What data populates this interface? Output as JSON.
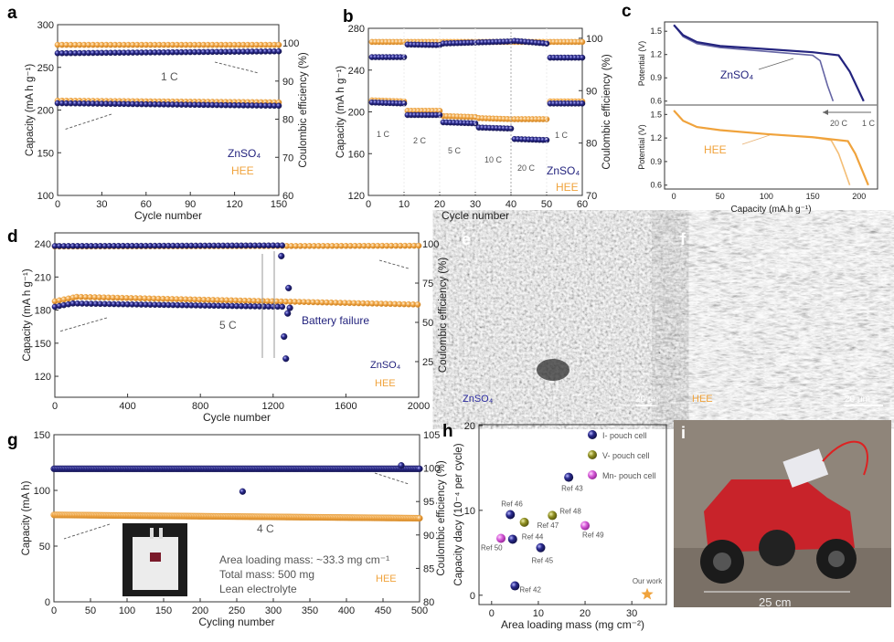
{
  "colors": {
    "zn": "#23237e",
    "hee": "#f0a33c",
    "v": "#8a8a1e",
    "mn": "#d45ad6",
    "axis": "#333333",
    "note": "#555555"
  },
  "chart_data": [
    {
      "id": "a",
      "type": "scatter",
      "letter": "a",
      "xlabel": "Cycle number",
      "ylabel": "Capacity (mA h g⁻¹)",
      "y2label": "Coulombic efficiency (%)",
      "xlim": [
        0,
        150
      ],
      "ylim": [
        100,
        300
      ],
      "y2lim": [
        60,
        104.8
      ],
      "xticks": [
        0,
        30,
        60,
        90,
        120,
        150
      ],
      "yticks": [
        100,
        150,
        200,
        250,
        300
      ],
      "y2ticks": [
        60,
        70,
        80,
        90,
        100
      ],
      "series": [
        {
          "name": "HEE CE",
          "axis": "right",
          "color": "hee",
          "segments": [
            [
              0,
              150,
              99.5,
              99.5
            ]
          ]
        },
        {
          "name": "ZnSO₄ CE",
          "axis": "right",
          "color": "zn",
          "segments": [
            [
              0,
              150,
              97.3,
              97.8
            ]
          ]
        },
        {
          "name": "HEE capacity",
          "axis": "left",
          "color": "hee",
          "segments": [
            [
              0,
              150,
              211,
              209
            ]
          ]
        },
        {
          "name": "ZnSO₄ capacity",
          "axis": "left",
          "color": "zn",
          "segments": [
            [
              0,
              150,
              208,
              205
            ]
          ]
        }
      ],
      "annotations": [
        "1 C"
      ],
      "legend": [
        "ZnSO₄",
        "HEE"
      ]
    },
    {
      "id": "b",
      "type": "scatter",
      "letter": "b",
      "xlabel": "Cycle number",
      "ylabel": "Capacity (mA h g⁻¹)",
      "y2label": "Coulombic efficiency (%)",
      "xlim": [
        0,
        60
      ],
      "ylim": [
        120,
        280
      ],
      "y2lim": [
        70,
        101.9
      ],
      "xticks": [
        0,
        10,
        20,
        30,
        40,
        50,
        60
      ],
      "yticks": [
        120,
        160,
        200,
        240,
        280
      ],
      "y2ticks": [
        70,
        80,
        90,
        100
      ],
      "series": [
        {
          "name": "HEE CE",
          "axis": "right",
          "color": "hee",
          "segments": [
            [
              1,
              60,
              99.3,
              99.3
            ]
          ]
        },
        {
          "name": "ZnSO₄ CE",
          "axis": "right",
          "color": "zn",
          "segments": [
            [
              1,
              10,
              96.4,
              96.4
            ],
            [
              11,
              20,
              98.8,
              98.7
            ],
            [
              21,
              40,
              99.0,
              99.4
            ],
            [
              41,
              50,
              99.5,
              99.0
            ],
            [
              51,
              60,
              96.3,
              96.3
            ]
          ]
        },
        {
          "name": "HEE capacity",
          "axis": "left",
          "color": "hee",
          "segments": [
            [
              1,
              10,
              211,
              210
            ],
            [
              11,
              20,
              201,
              201
            ],
            [
              21,
              30,
              196,
              195
            ],
            [
              31,
              40,
              194,
              193
            ],
            [
              41,
              50,
              193,
              193
            ],
            [
              51,
              60,
              210,
              210
            ]
          ]
        },
        {
          "name": "ZnSO₄ capacity",
          "axis": "left",
          "color": "zn",
          "segments": [
            [
              1,
              10,
              209,
              208
            ],
            [
              11,
              20,
              197,
              197
            ],
            [
              21,
              30,
              190,
              189
            ],
            [
              31,
              40,
              185,
              184
            ],
            [
              41,
              50,
              174,
              173
            ],
            [
              51,
              60,
              208,
              208
            ]
          ]
        }
      ],
      "annotations": [
        "1 C",
        "2 C",
        "5 C",
        "10 C",
        "20 C",
        "1 C"
      ],
      "legend": [
        "ZnSO₄",
        "HEE"
      ]
    },
    {
      "id": "c",
      "type": "line",
      "letter": "c",
      "xlabel": "Capacity (mA h g⁻¹)",
      "ylabel": "Potential (V)",
      "xlim": [
        -10,
        220
      ],
      "ylim": [
        0.55,
        1.62
      ],
      "xticks": [
        0,
        50,
        100,
        150,
        200
      ],
      "yticks": [
        0.6,
        0.9,
        1.2,
        1.5
      ],
      "panels": [
        {
          "name": "ZnSO₄",
          "color": "zn",
          "curves": [
            {
              "rate": "1 C",
              "points": [
                [
                  0,
                  1.58
                ],
                [
                  10,
                  1.45
                ],
                [
                  25,
                  1.36
                ],
                [
                  50,
                  1.31
                ],
                [
                  100,
                  1.27
                ],
                [
                  150,
                  1.23
                ],
                [
                  178,
                  1.19
                ],
                [
                  190,
                  0.98
                ],
                [
                  205,
                  0.6
                ]
              ]
            },
            {
              "rate": "20 C",
              "points": [
                [
                  0,
                  1.58
                ],
                [
                  10,
                  1.43
                ],
                [
                  25,
                  1.34
                ],
                [
                  50,
                  1.29
                ],
                [
                  100,
                  1.24
                ],
                [
                  150,
                  1.19
                ],
                [
                  158,
                  1.12
                ],
                [
                  166,
                  0.8
                ],
                [
                  172,
                  0.6
                ]
              ]
            }
          ]
        },
        {
          "name": "HEE",
          "color": "hee",
          "curves": [
            {
              "rate": "1 C",
              "points": [
                [
                  0,
                  1.55
                ],
                [
                  10,
                  1.42
                ],
                [
                  25,
                  1.34
                ],
                [
                  50,
                  1.3
                ],
                [
                  100,
                  1.25
                ],
                [
                  150,
                  1.21
                ],
                [
                  188,
                  1.16
                ],
                [
                  196,
                  1.0
                ],
                [
                  210,
                  0.6
                ]
              ]
            },
            {
              "rate": "20 C",
              "points": [
                [
                  0,
                  1.55
                ],
                [
                  10,
                  1.42
                ],
                [
                  25,
                  1.34
                ],
                [
                  50,
                  1.3
                ],
                [
                  100,
                  1.25
                ],
                [
                  150,
                  1.21
                ],
                [
                  170,
                  1.17
                ],
                [
                  178,
                  1.0
                ],
                [
                  190,
                  0.6
                ]
              ]
            }
          ]
        }
      ],
      "annotations": [
        "20 C",
        "1 C"
      ]
    },
    {
      "id": "d",
      "type": "scatter",
      "letter": "d",
      "xlabel": "Cycle number",
      "ylabel": "Capacity (mA h g⁻¹)",
      "y2label": "Coulombic efficiency (%)",
      "xlim": [
        0,
        2000
      ],
      "ylim": [
        101,
        250
      ],
      "y2lim": [
        2.3,
        107
      ],
      "xticks": [
        0,
        400,
        800,
        1200,
        1600,
        2000
      ],
      "yticks": [
        120,
        150,
        180,
        210,
        240
      ],
      "y2ticks": [
        25,
        50,
        75,
        100
      ],
      "series": [
        {
          "name": "HEE CE",
          "axis": "right",
          "color": "hee",
          "segments": [
            [
              0,
              2000,
              98.3,
              98.8
            ]
          ]
        },
        {
          "name": "ZnSO₄ CE",
          "axis": "right",
          "color": "zn",
          "segments": [
            [
              0,
              1260,
              98.6,
              99.0
            ]
          ]
        },
        {
          "name": "HEE capacity",
          "axis": "left",
          "color": "hee",
          "segments": [
            [
              0,
              120,
              188,
              192
            ],
            [
              120,
              2000,
              192,
              185
            ]
          ]
        },
        {
          "name": "ZnSO₄ capacity",
          "axis": "left",
          "color": "zn",
          "segments": [
            [
              0,
              100,
              183,
              186
            ],
            [
              100,
              1250,
              186,
              183
            ]
          ],
          "points": [
            [
              1245,
              229
            ],
            [
              1260,
              156
            ],
            [
              1270,
              136
            ],
            [
              1280,
              177
            ],
            [
              1285,
              200
            ],
            [
              1292,
              182
            ]
          ]
        }
      ],
      "annotations": [
        "5 C",
        "Battery failure"
      ],
      "legend": [
        "ZnSO₄",
        "HEE"
      ]
    },
    {
      "id": "g",
      "type": "scatter",
      "letter": "g",
      "xlabel": "Cycling number",
      "ylabel": "Capacity (mA h)",
      "y2label": "Coulombic efficiency (%)",
      "xlim": [
        0,
        500
      ],
      "ylim": [
        0,
        150
      ],
      "y2lim": [
        80,
        105
      ],
      "xticks": [
        0,
        50,
        100,
        150,
        200,
        250,
        300,
        350,
        400,
        450,
        500
      ],
      "yticks": [
        0,
        50,
        100,
        150
      ],
      "y2ticks": [
        80,
        85,
        90,
        95,
        100,
        105
      ],
      "series": [
        {
          "name": "CE",
          "axis": "right",
          "color": "zn",
          "segments": [
            [
              0,
              500,
              99.9,
              99.9
            ]
          ],
          "points": [
            [
              258,
              96.5
            ],
            [
              475,
              100.4
            ]
          ]
        },
        {
          "name": "Capacity",
          "axis": "left",
          "color": "hee",
          "segments": [
            [
              0,
              500,
              78,
              75
            ]
          ]
        }
      ],
      "annotations": [
        "4 C",
        "Area loading mass: ~33.3 mg cm⁻¹",
        "Total mass: 500 mg",
        "Lean electrolyte"
      ],
      "legend": [
        "HEE"
      ]
    },
    {
      "id": "h",
      "type": "scatter",
      "letter": "h",
      "xlabel": "Area loading mass (mg cm⁻²)",
      "ylabel": "Capacity dacy (10⁻⁴ per cycle)",
      "xlim": [
        -2.7,
        37.4
      ],
      "ylim": [
        -1.1,
        20.1
      ],
      "xticks": [
        0,
        10,
        20,
        30
      ],
      "yticks": [
        0,
        10,
        20
      ],
      "legend": [
        {
          "label": "I- pouch cell",
          "color": "zn"
        },
        {
          "label": "V- pouch cell",
          "color": "v"
        },
        {
          "label": "Mn- pouch cell",
          "color": "mn"
        }
      ],
      "points": [
        {
          "label": "Ref 43",
          "x": 16.5,
          "y": 13.9,
          "type": "I"
        },
        {
          "label": "Ref 46",
          "x": 4.0,
          "y": 9.5,
          "type": "I"
        },
        {
          "label": "Ref 47",
          "x": 7.0,
          "y": 8.6,
          "type": "V"
        },
        {
          "label": "Ref 48",
          "x": 13.0,
          "y": 9.4,
          "type": "V"
        },
        {
          "label": "Ref 49",
          "x": 20.0,
          "y": 8.2,
          "type": "Mn"
        },
        {
          "label": "Ref 50",
          "x": 2.0,
          "y": 6.7,
          "type": "Mn"
        },
        {
          "label": "Ref 44",
          "x": 4.5,
          "y": 6.6,
          "type": "I"
        },
        {
          "label": "Ref 45",
          "x": 10.5,
          "y": 5.6,
          "type": "I"
        },
        {
          "label": "Ref 42",
          "x": 5.0,
          "y": 1.1,
          "type": "I"
        },
        {
          "label": "Our work",
          "x": 33.3,
          "y": 0.1,
          "type": "star"
        }
      ]
    }
  ],
  "images": {
    "e": {
      "letter": "e",
      "label": "ZnSO₄",
      "scale": "20 μm"
    },
    "f": {
      "letter": "f",
      "label": "HEE",
      "scale": "20 μm"
    },
    "i": {
      "letter": "i",
      "scale": "25 cm"
    }
  }
}
